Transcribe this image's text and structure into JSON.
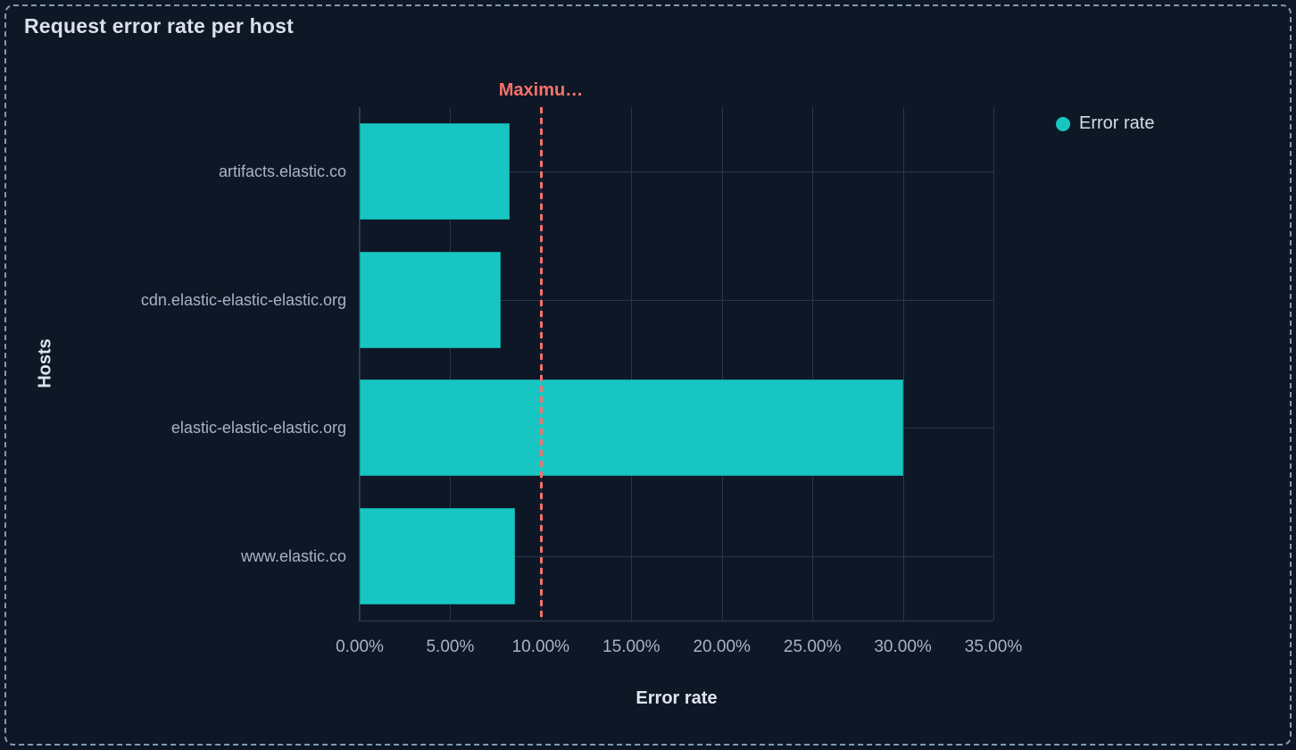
{
  "panel": {
    "title": "Request error rate per host"
  },
  "legend": {
    "position": "right",
    "items": [
      {
        "label": "Error rate",
        "swatch_color": "#17c6c2"
      }
    ]
  },
  "colors": {
    "background": "#0e1726",
    "bar": "#17c6c2",
    "threshold": "#f6726a",
    "grid": "#263650",
    "selection_border": "#8299b5",
    "text_bright": "#d9e0eb",
    "text_muted": "#a7b3c9"
  },
  "chart_data": {
    "type": "bar",
    "orientation": "horizontal",
    "title": "Request error rate per host",
    "categories": [
      "artifacts.elastic.co",
      "cdn.elastic-elastic-elastic.org",
      "elastic-elastic-elastic.org",
      "www.elastic.co"
    ],
    "series": [
      {
        "name": "Error rate",
        "color": "#17c6c2",
        "values": [
          8.3,
          7.8,
          30.0,
          8.6
        ]
      }
    ],
    "xlabel": "Error rate",
    "ylabel": "Hosts",
    "xlim": [
      0,
      35
    ],
    "x_ticks": [
      0,
      5,
      10,
      15,
      20,
      25,
      30,
      35
    ],
    "x_tick_labels": [
      "0.00%",
      "5.00%",
      "10.00%",
      "15.00%",
      "20.00%",
      "25.00%",
      "30.00%",
      "35.00%"
    ],
    "grid": true,
    "legend_position": "top-right",
    "annotations": [
      {
        "type": "vline",
        "value": 10,
        "label": "Maximu…",
        "color": "#f6726a",
        "style": "dashed"
      }
    ]
  }
}
